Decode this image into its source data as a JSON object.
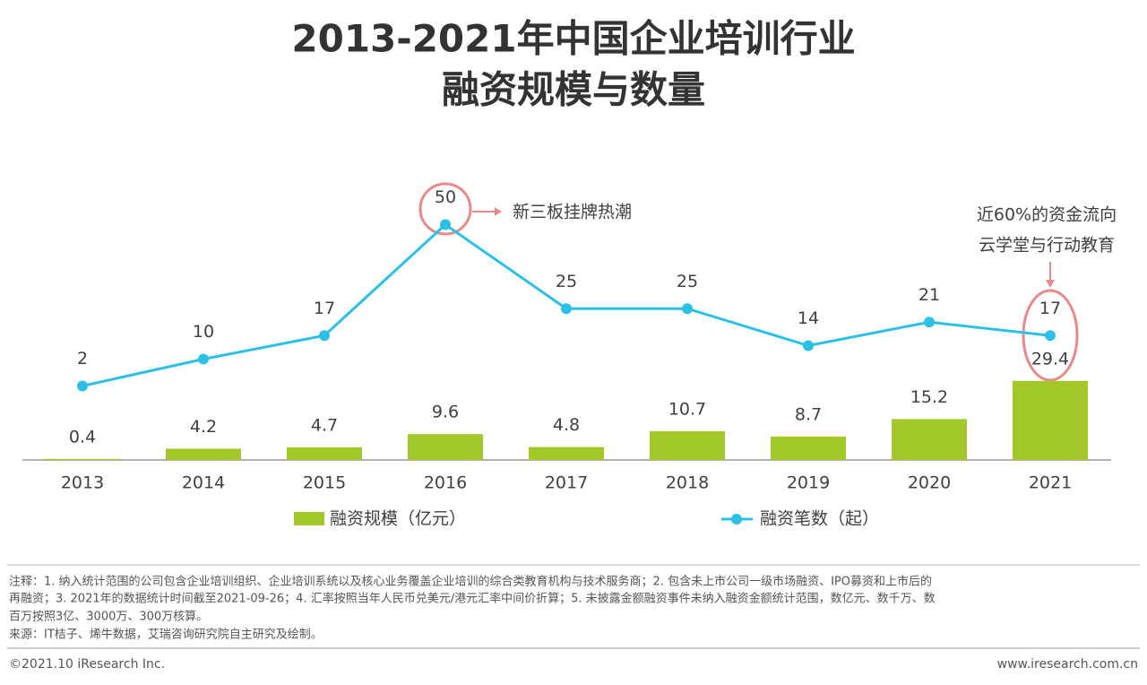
{
  "chart_data": {
    "type": "combo",
    "title": [
      "2013-2021年中国企业培训行业",
      "融资规模与数量"
    ],
    "categories": [
      "2013",
      "2014",
      "2015",
      "2016",
      "2017",
      "2018",
      "2019",
      "2020",
      "2021"
    ],
    "series": [
      {
        "name": "融资规模（亿元）",
        "type": "bar",
        "color": "#a3c82a",
        "values": [
          0.4,
          4.2,
          4.7,
          9.6,
          4.8,
          10.7,
          8.7,
          15.2,
          29.4
        ]
      },
      {
        "name": "融资笔数（起）",
        "type": "line",
        "axis": "y2",
        "color": "#2cc0e6",
        "values": [
          2,
          10,
          17,
          50,
          25,
          25,
          14,
          21,
          17
        ]
      }
    ],
    "ylim": [
      0,
      100
    ],
    "y2lim": [
      -20,
      60
    ],
    "annotations": [
      "新三板挂牌热潮",
      "近60%的资金流向",
      "云学堂与行动教育"
    ]
  },
  "notes": [
    "注释：1. 纳入统计范围的公司包含企业培训组织、企业培训系统以及核心业务覆盖企业培训的综合类教育机构与技术服务商；2. 包含未上市公司一级市场融资、IPO募资和上市后的",
    "再融资；3. 2021年的数据统计时间截至2021-09-26；4. 汇率按照当年人民币兑美元/港元汇率中间价折算；5. 未披露金额融资事件未纳入融资金额统计范围，数亿元、数千万、数",
    "百万按照3亿、3000万、300万核算。",
    "来源：IT桔子、烯牛数据，艾瑞咨询研究院自主研究及绘制。"
  ],
  "footer": {
    "left": "©2021.10 iResearch Inc.",
    "right": "www.iresearch.com.cn"
  }
}
